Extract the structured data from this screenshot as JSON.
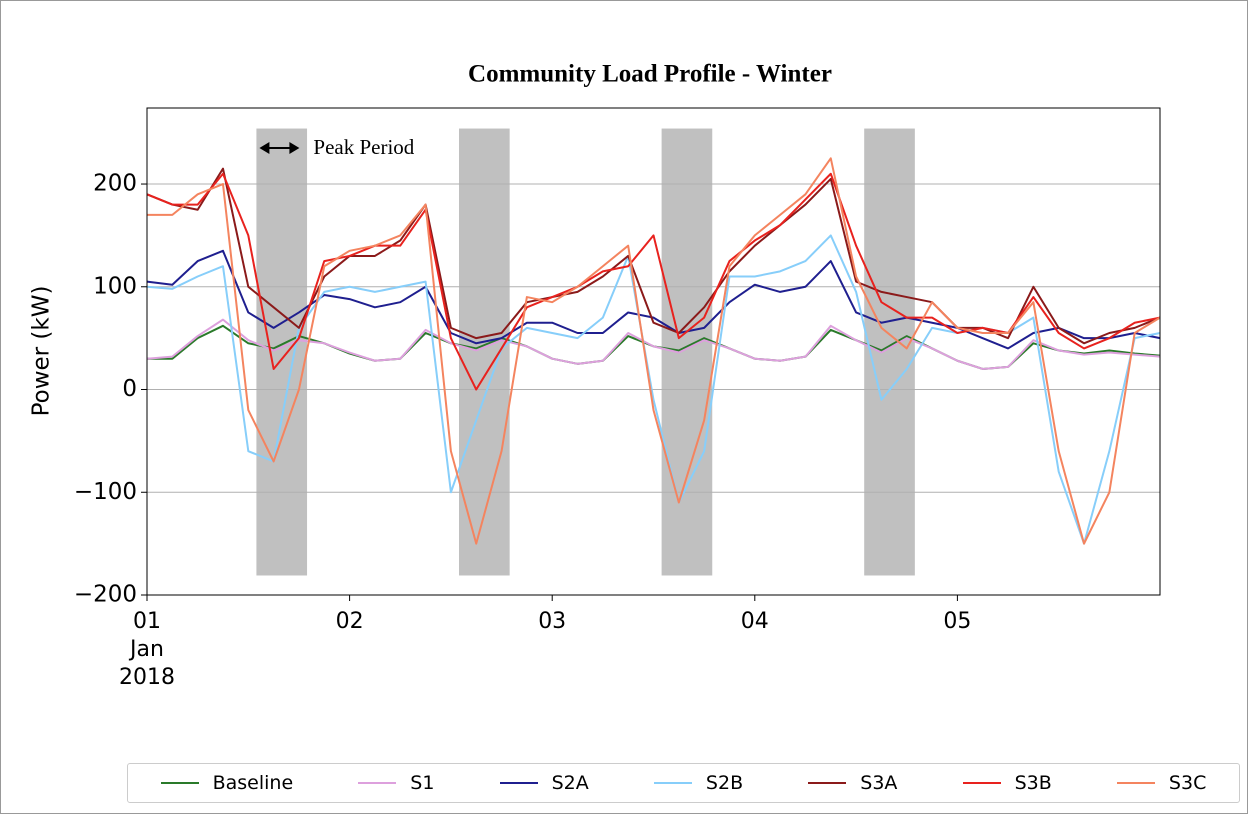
{
  "chart_data": {
    "type": "line",
    "title": "Community Load Profile - Winter",
    "ylabel": "Power (kW)",
    "annotation": "Peak Period",
    "peak_periods": [
      [
        1.54,
        1.79
      ],
      [
        2.54,
        2.79
      ],
      [
        3.54,
        3.79
      ],
      [
        4.54,
        4.79
      ]
    ],
    "peak_ylim": [
      -181,
      254
    ],
    "peak_color": "#c0c0c0",
    "x": [
      1,
      1.125,
      1.25,
      1.375,
      1.5,
      1.625,
      1.75,
      1.875,
      2,
      2.125,
      2.25,
      2.375,
      2.5,
      2.625,
      2.75,
      2.875,
      3,
      3.125,
      3.25,
      3.375,
      3.5,
      3.625,
      3.75,
      3.875,
      4,
      4.125,
      4.25,
      4.375,
      4.5,
      4.625,
      4.75,
      4.875,
      5,
      5.125,
      5.25,
      5.375,
      5.5,
      5.625,
      5.75,
      5.875,
      6
    ],
    "xlim": [
      1,
      6
    ],
    "ylim": [
      -200,
      274
    ],
    "xticks": [
      {
        "value": 1,
        "label": "01\nJan\n2018"
      },
      {
        "value": 2,
        "label": "02"
      },
      {
        "value": 3,
        "label": "03"
      },
      {
        "value": 4,
        "label": "04"
      },
      {
        "value": 5,
        "label": "05"
      }
    ],
    "yticks": [
      -200,
      -100,
      0,
      100,
      200
    ],
    "grid": true,
    "series": [
      {
        "name": "Baseline",
        "color": "#2a7a2a",
        "values": [
          30,
          30,
          50,
          62,
          45,
          40,
          52,
          45,
          35,
          28,
          30,
          55,
          45,
          40,
          50,
          42,
          30,
          25,
          28,
          52,
          42,
          38,
          50,
          40,
          30,
          28,
          32,
          58,
          48,
          38,
          52,
          40,
          28,
          20,
          22,
          45,
          38,
          35,
          38,
          35,
          33
        ]
      },
      {
        "name": "S1",
        "color": "#dda0dd",
        "values": [
          30,
          32,
          52,
          68,
          48,
          38,
          48,
          45,
          36,
          28,
          30,
          58,
          45,
          38,
          48,
          42,
          30,
          25,
          28,
          55,
          42,
          36,
          48,
          40,
          30,
          28,
          32,
          62,
          48,
          36,
          50,
          40,
          28,
          20,
          22,
          48,
          38,
          34,
          36,
          34,
          32
        ]
      },
      {
        "name": "S2A",
        "color": "#1f1f8f",
        "values": [
          105,
          102,
          125,
          135,
          75,
          60,
          75,
          92,
          88,
          80,
          85,
          100,
          55,
          45,
          50,
          65,
          65,
          55,
          55,
          75,
          70,
          55,
          60,
          85,
          102,
          95,
          100,
          125,
          75,
          65,
          70,
          65,
          60,
          50,
          40,
          55,
          60,
          50,
          50,
          55,
          50
        ]
      },
      {
        "name": "S2B",
        "color": "#87cefa",
        "values": [
          100,
          98,
          110,
          120,
          -60,
          -70,
          60,
          95,
          100,
          95,
          100,
          105,
          -100,
          -30,
          40,
          60,
          55,
          50,
          70,
          130,
          -10,
          -110,
          -60,
          110,
          110,
          115,
          125,
          150,
          95,
          -10,
          20,
          60,
          55,
          60,
          55,
          70,
          -80,
          -150,
          -60,
          50,
          55
        ]
      },
      {
        "name": "S3A",
        "color": "#8b1a1a",
        "values": [
          190,
          180,
          175,
          215,
          100,
          80,
          60,
          110,
          130,
          130,
          145,
          180,
          60,
          50,
          55,
          85,
          90,
          95,
          110,
          130,
          65,
          55,
          80,
          115,
          140,
          160,
          180,
          205,
          105,
          95,
          90,
          85,
          60,
          60,
          50,
          100,
          60,
          45,
          55,
          60,
          70
        ]
      },
      {
        "name": "S3B",
        "color": "#e8221e",
        "values": [
          190,
          180,
          180,
          210,
          150,
          20,
          50,
          125,
          130,
          140,
          140,
          175,
          50,
          0,
          40,
          80,
          90,
          100,
          115,
          120,
          150,
          50,
          70,
          125,
          145,
          160,
          185,
          210,
          140,
          85,
          70,
          70,
          55,
          60,
          55,
          90,
          55,
          40,
          50,
          65,
          70
        ]
      },
      {
        "name": "S3C",
        "color": "#f4845f",
        "values": [
          170,
          170,
          190,
          200,
          -20,
          -70,
          0,
          120,
          135,
          140,
          150,
          180,
          -60,
          -150,
          -60,
          90,
          85,
          100,
          120,
          140,
          -20,
          -110,
          -30,
          120,
          150,
          170,
          190,
          225,
          110,
          60,
          40,
          85,
          60,
          55,
          55,
          85,
          -60,
          -150,
          -100,
          55,
          70
        ]
      }
    ]
  }
}
